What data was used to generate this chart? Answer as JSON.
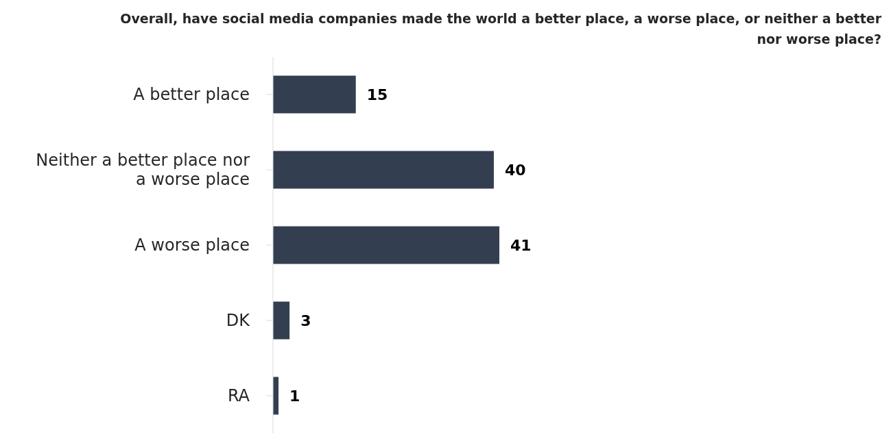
{
  "chart_data": {
    "type": "bar",
    "orientation": "horizontal",
    "title": "Overall, have social media companies made the world a better place, a worse place, or neither a better nor worse place?",
    "categories": [
      "A better place",
      "Neither a better place nor a worse place",
      "A worse place",
      "DK",
      "RA"
    ],
    "values": [
      15,
      40,
      41,
      3,
      1
    ],
    "color": "#333f50",
    "data_labels": true
  }
}
